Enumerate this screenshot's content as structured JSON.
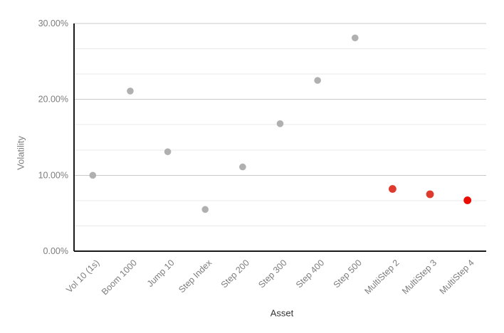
{
  "chart_data": {
    "type": "scatter",
    "title": "",
    "xlabel": "Asset",
    "ylabel": "Volatility",
    "unit": "%",
    "ylim": [
      0,
      30
    ],
    "grid": true,
    "legend": "none",
    "minor_gridlines_per_major_interval": 2,
    "y_ticks": [
      {
        "value": 0,
        "label": "0.00%"
      },
      {
        "value": 10,
        "label": "10.00%"
      },
      {
        "value": 20,
        "label": "20.00%"
      },
      {
        "value": 30,
        "label": "30.00%"
      }
    ],
    "categories": [
      "Vol 10 (1s)",
      "Boom 1000",
      "Jump 10",
      "Step Index",
      "Step 200",
      "Step 300",
      "Step 400",
      "Step 500",
      "MultiStep 2",
      "MultiStep 3",
      "MultiStep 4"
    ],
    "points": [
      {
        "label": "Vol 10 (1s)",
        "value": 10.0,
        "series": "standard",
        "color": "#b0b0b0"
      },
      {
        "label": "Boom 1000",
        "value": 21.1,
        "series": "standard",
        "color": "#b0b0b0"
      },
      {
        "label": "Jump 10",
        "value": 13.1,
        "series": "standard",
        "color": "#b0b0b0"
      },
      {
        "label": "Step Index",
        "value": 5.5,
        "series": "standard",
        "color": "#b0b0b0"
      },
      {
        "label": "Step 200",
        "value": 11.1,
        "series": "standard",
        "color": "#b0b0b0"
      },
      {
        "label": "Step 300",
        "value": 16.8,
        "series": "standard",
        "color": "#b0b0b0"
      },
      {
        "label": "Step 400",
        "value": 22.5,
        "series": "standard",
        "color": "#b0b0b0"
      },
      {
        "label": "Step 500",
        "value": 28.1,
        "series": "standard",
        "color": "#b0b0b0"
      },
      {
        "label": "MultiStep 2",
        "value": 8.2,
        "series": "multistep",
        "color": "#df3a2d"
      },
      {
        "label": "MultiStep 3",
        "value": 7.5,
        "series": "multistep",
        "color": "#df3a2d"
      },
      {
        "label": "MultiStep 4",
        "value": 6.7,
        "series": "multistep",
        "color": "#ea0c00"
      }
    ],
    "colors": {
      "standard_point": "#b0b0b0",
      "multistep_point": "#df3a2d",
      "multistep_point_bright": "#ea0c00",
      "axis_line": "#1a1a1a",
      "major_gridline": "#cacaca",
      "minor_gridline": "#e9e9e9",
      "tick_label_text": "#7d7d7d",
      "axis_title_x_text": "#333333",
      "axis_title_y_text": "#7d7d7d",
      "background": "#ffffff"
    }
  }
}
